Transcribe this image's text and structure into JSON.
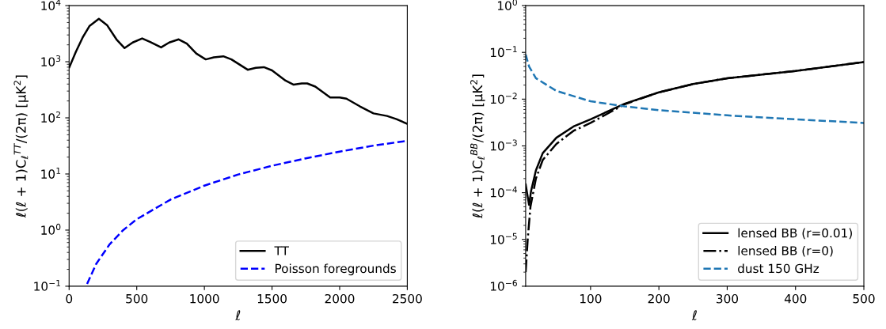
{
  "chart_data": [
    {
      "type": "line",
      "xlabel": "ℓ",
      "ylabel": "ℓ(ℓ + 1)C$_{ℓ}$$^{TT}$/(2π) [μK$^{2}$]",
      "log": "y",
      "legend": "lower right",
      "grid": false,
      "xlim": [
        0,
        2500
      ],
      "xticks": [
        0,
        500,
        1000,
        1500,
        2000,
        2500
      ],
      "ylim": [
        0.1,
        10000
      ],
      "yticks": [
        {
          "value": 0.1,
          "label": "10$^{−1}$"
        },
        {
          "value": 1,
          "label": "10$^{0}$"
        },
        {
          "value": 10,
          "label": "10$^{1}$"
        },
        {
          "value": 100,
          "label": "10$^{2}$"
        },
        {
          "value": 1000,
          "label": "10$^{3}$"
        },
        {
          "value": 10000,
          "label": "10$^{4}$"
        }
      ],
      "series": [
        {
          "name": "TT",
          "color": "#000000",
          "line_style": "solid",
          "x": [
            2,
            50,
            100,
            150,
            220,
            280,
            350,
            410,
            470,
            540,
            600,
            680,
            740,
            810,
            870,
            940,
            1010,
            1070,
            1140,
            1200,
            1320,
            1380,
            1440,
            1500,
            1600,
            1660,
            1720,
            1760,
            1820,
            1930,
            2000,
            2050,
            2150,
            2250,
            2350,
            2420,
            2500
          ],
          "values": [
            800,
            1500,
            2700,
            4300,
            5800,
            4500,
            2500,
            1750,
            2200,
            2600,
            2250,
            1800,
            2200,
            2500,
            2100,
            1400,
            1100,
            1200,
            1250,
            1100,
            720,
            780,
            800,
            700,
            460,
            390,
            410,
            410,
            360,
            230,
            230,
            220,
            160,
            120,
            108,
            95,
            78
          ]
        },
        {
          "name": "Poisson foregrounds",
          "color": "#0000ff",
          "line_style": "dashed",
          "x": [
            133,
            200,
            300,
            400,
            500,
            750,
            1000,
            1250,
            1500,
            1750,
            2000,
            2250,
            2500
          ],
          "values": [
            0.11,
            0.25,
            0.56,
            1.0,
            1.56,
            3.5,
            6.2,
            9.8,
            14,
            19,
            25,
            32,
            39
          ]
        }
      ]
    },
    {
      "type": "line",
      "xlabel": "ℓ",
      "ylabel": "ℓ(ℓ + 1)C$_{ℓ}$$^{BB}$/(2π) [μK$^{2}$]",
      "log": "y",
      "legend": "lower right",
      "grid": false,
      "xlim": [
        5,
        500
      ],
      "xticks": [
        100,
        200,
        300,
        400,
        500
      ],
      "ylim": [
        1e-06,
        1
      ],
      "yticks": [
        {
          "value": 1e-06,
          "label": "10$^{−6}$"
        },
        {
          "value": 1e-05,
          "label": "10$^{−5}$"
        },
        {
          "value": 0.0001,
          "label": "10$^{−4}$"
        },
        {
          "value": 0.001,
          "label": "10$^{−3}$"
        },
        {
          "value": 0.01,
          "label": "10$^{−2}$"
        },
        {
          "value": 0.1,
          "label": "10$^{−1}$"
        },
        {
          "value": 1,
          "label": "10$^{0}$"
        }
      ],
      "series": [
        {
          "name": "lensed BB (r=0.01)",
          "color": "#000000",
          "line_style": "solid",
          "x": [
            5,
            7,
            10,
            13,
            20,
            30,
            50,
            75,
            100,
            150,
            200,
            250,
            300,
            400,
            500
          ],
          "values": [
            0.00015,
            0.0001,
            5.5e-05,
            0.00011,
            0.0003,
            0.0007,
            0.0015,
            0.0026,
            0.0037,
            0.008,
            0.014,
            0.021,
            0.028,
            0.04,
            0.062
          ]
        },
        {
          "name": "lensed BB (r=0)",
          "color": "#000000",
          "line_style": "dashdot",
          "x": [
            5,
            8,
            12,
            20,
            30,
            50,
            75,
            100,
            150,
            200,
            250,
            300,
            400,
            500
          ],
          "values": [
            2e-06,
            1e-05,
            5e-05,
            0.0002,
            0.0005,
            0.0011,
            0.0021,
            0.0031,
            0.0078,
            0.014,
            0.021,
            0.028,
            0.04,
            0.062
          ]
        },
        {
          "name": "dust 150 GHz",
          "color": "#1f77b4",
          "line_style": "dashed",
          "x": [
            5,
            10,
            20,
            50,
            100,
            150,
            200,
            300,
            400,
            500
          ],
          "values": [
            0.09,
            0.05,
            0.028,
            0.015,
            0.009,
            0.007,
            0.0058,
            0.0045,
            0.0037,
            0.0031
          ]
        }
      ]
    }
  ]
}
